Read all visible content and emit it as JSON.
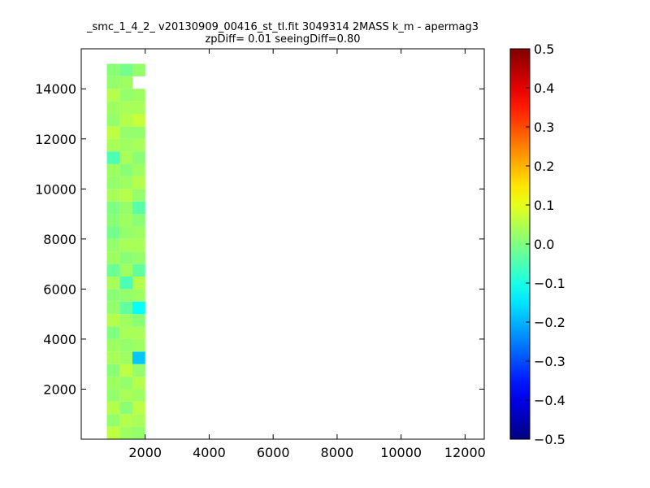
{
  "chart_data": {
    "type": "heatmap",
    "title": "_smc_1_4_2_ v20130909_00416_st_tl.fit 3049314 2MASS k_m - apermag3",
    "subtitle": "zpDiff= 0.01 seeingDiff=0.80",
    "xlabel": "",
    "ylabel": "",
    "xlim": [
      0,
      12600
    ],
    "ylim": [
      0,
      15600
    ],
    "grid": false,
    "x_ticks": [
      "2000",
      "4000",
      "6000",
      "8000",
      "10000",
      "12000"
    ],
    "y_ticks": [
      "2000",
      "4000",
      "6000",
      "8000",
      "10000",
      "12000",
      "14000"
    ],
    "colorbar": {
      "range": [
        -0.5,
        0.5
      ],
      "colormap": "jet",
      "ticks": [
        "0.5",
        "0.4",
        "0.3",
        "0.2",
        "0.1",
        "0.0",
        "−0.1",
        "−0.2",
        "−0.3",
        "−0.4",
        "−0.5"
      ]
    },
    "grid_spec": {
      "x0": 0,
      "y0": 0,
      "cell_width": 400,
      "cell_height": 500,
      "ncols": 32,
      "nrows": 32,
      "missing_value": "null"
    },
    "cells": [
      [
        0,
        0,
        null
      ],
      [
        0,
        1,
        null
      ],
      [
        0,
        2,
        null
      ],
      [
        0,
        3,
        null
      ],
      [
        0,
        4,
        null
      ],
      [
        0,
        5,
        null
      ],
      [
        0,
        6,
        null
      ],
      [
        0,
        7,
        null
      ],
      [
        2,
        0,
        0.06
      ],
      [
        2,
        1,
        0.02
      ],
      [
        2,
        2,
        0.05
      ],
      [
        2,
        3,
        0.02
      ],
      [
        2,
        4,
        0.03
      ],
      [
        2,
        5,
        0.01
      ],
      [
        2,
        6,
        0.04
      ],
      [
        2,
        7,
        0.03
      ],
      [
        2,
        8,
        0.0
      ],
      [
        2,
        9,
        0.05
      ],
      [
        2,
        10,
        0.02
      ],
      [
        2,
        11,
        0.01
      ],
      [
        2,
        12,
        0.04
      ],
      [
        2,
        13,
        -0.02
      ],
      [
        2,
        14,
        0.03
      ],
      [
        2,
        15,
        0.02
      ],
      [
        2,
        16,
        -0.01
      ],
      [
        2,
        17,
        0.01
      ],
      [
        2,
        18,
        0.0
      ],
      [
        2,
        19,
        0.04
      ],
      [
        2,
        20,
        0.02
      ],
      [
        2,
        21,
        0.03
      ],
      [
        2,
        22,
        -0.05
      ],
      [
        2,
        23,
        0.04
      ],
      [
        2,
        24,
        0.06
      ],
      [
        2,
        25,
        0.02
      ],
      [
        2,
        26,
        0.03
      ],
      [
        2,
        27,
        0.05
      ],
      [
        2,
        28,
        0.02
      ],
      [
        2,
        29,
        0.01
      ],
      [
        3,
        0,
        0.03
      ],
      [
        3,
        1,
        0.05
      ],
      [
        3,
        2,
        0.01
      ],
      [
        3,
        3,
        0.04
      ],
      [
        3,
        4,
        0.02
      ],
      [
        3,
        5,
        0.06
      ],
      [
        3,
        6,
        0.03
      ],
      [
        3,
        7,
        0.02
      ],
      [
        3,
        8,
        0.04
      ],
      [
        3,
        9,
        0.03
      ],
      [
        3,
        10,
        -0.03
      ],
      [
        3,
        11,
        0.02
      ],
      [
        3,
        12,
        -0.05
      ],
      [
        3,
        13,
        0.03
      ],
      [
        3,
        14,
        0.01
      ],
      [
        3,
        15,
        0.04
      ],
      [
        3,
        16,
        0.02
      ],
      [
        3,
        17,
        0.03
      ],
      [
        3,
        18,
        0.02
      ],
      [
        3,
        19,
        0.05
      ],
      [
        3,
        20,
        0.03
      ],
      [
        3,
        21,
        0.01
      ],
      [
        3,
        22,
        0.04
      ],
      [
        3,
        23,
        0.03
      ],
      [
        3,
        24,
        0.02
      ],
      [
        3,
        25,
        0.05
      ],
      [
        3,
        26,
        0.04
      ],
      [
        3,
        27,
        0.02
      ],
      [
        3,
        28,
        0.03
      ],
      [
        3,
        29,
        -0.01
      ],
      [
        4,
        0,
        0.02
      ],
      [
        4,
        1,
        0.04
      ],
      [
        4,
        2,
        0.06
      ],
      [
        4,
        3,
        0.03
      ],
      [
        4,
        4,
        0.05
      ],
      [
        4,
        5,
        0.02
      ],
      [
        4,
        6,
        -0.18
      ],
      [
        4,
        7,
        0.03
      ],
      [
        4,
        8,
        0.04
      ],
      [
        4,
        9,
        0.01
      ],
      [
        4,
        10,
        -0.12
      ],
      [
        4,
        11,
        0.03
      ],
      [
        4,
        12,
        0.05
      ],
      [
        4,
        13,
        -0.03
      ],
      [
        4,
        14,
        0.02
      ],
      [
        4,
        15,
        0.04
      ],
      [
        4,
        16,
        0.03
      ],
      [
        4,
        17,
        0.01
      ],
      [
        4,
        18,
        -0.04
      ],
      [
        4,
        19,
        0.02
      ],
      [
        4,
        20,
        0.05
      ],
      [
        4,
        21,
        0.03
      ],
      [
        4,
        22,
        0.01
      ],
      [
        4,
        23,
        0.04
      ],
      [
        4,
        24,
        0.02
      ],
      [
        4,
        25,
        0.07
      ],
      [
        4,
        26,
        0.04
      ],
      [
        4,
        27,
        0.03
      ],
      [
        4,
        28,
        null
      ],
      [
        4,
        29,
        0.02
      ]
    ]
  }
}
